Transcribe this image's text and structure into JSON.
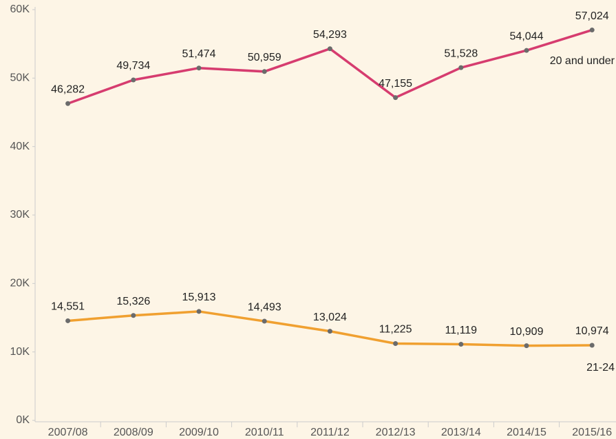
{
  "chart_data": {
    "type": "line",
    "categories": [
      "2007/08",
      "2008/09",
      "2009/10",
      "2010/11",
      "2011/12",
      "2012/13",
      "2013/14",
      "2014/15",
      "2015/16"
    ],
    "series": [
      {
        "name": "20 and under",
        "color": "#d63c6f",
        "values": [
          46282,
          49734,
          51474,
          50959,
          54293,
          47155,
          51528,
          54044,
          57024
        ],
        "value_labels": [
          "46,282",
          "49,734",
          "51,474",
          "50,959",
          "54,293",
          "47,155",
          "51,528",
          "54,044",
          "57,024"
        ]
      },
      {
        "name": "21-24",
        "color": "#f0a030",
        "values": [
          14551,
          15326,
          15913,
          14493,
          13024,
          11225,
          11119,
          10909,
          10974
        ],
        "value_labels": [
          "14,551",
          "15,326",
          "15,913",
          "14,493",
          "13,024",
          "11,225",
          "11,119",
          "10,909",
          "10,974"
        ]
      }
    ],
    "ylim": [
      0,
      60000
    ],
    "yticks": [
      {
        "value": 0,
        "label": "0K"
      },
      {
        "value": 10000,
        "label": "10K"
      },
      {
        "value": 20000,
        "label": "20K"
      },
      {
        "value": 30000,
        "label": "30K"
      },
      {
        "value": 40000,
        "label": "40K"
      },
      {
        "value": 50000,
        "label": "50K"
      },
      {
        "value": 60000,
        "label": "60K"
      }
    ]
  }
}
